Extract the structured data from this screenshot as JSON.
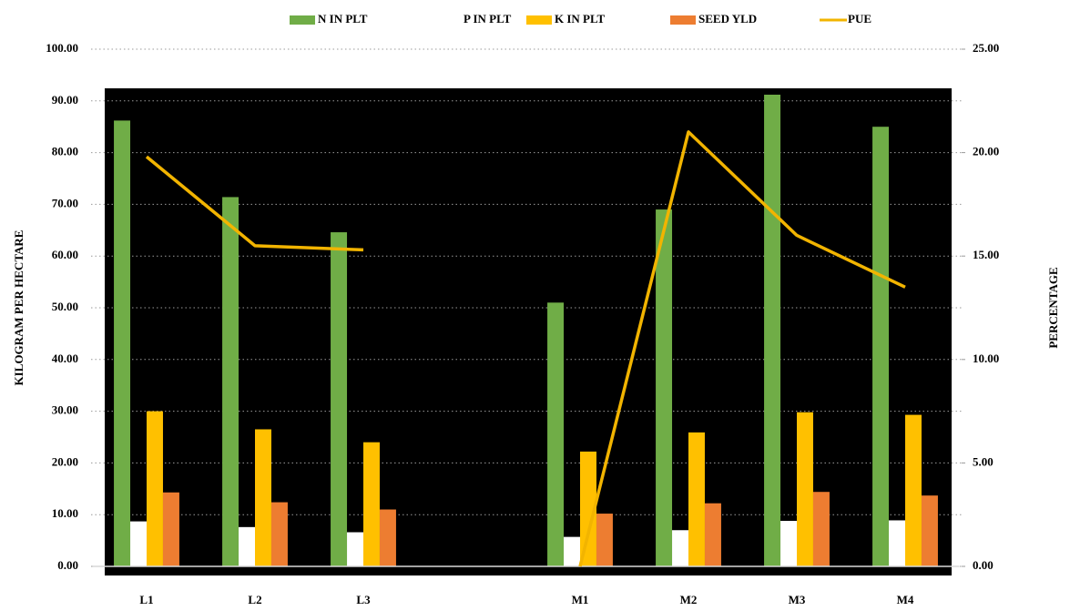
{
  "chart_data": {
    "type": "bar",
    "categories": [
      "L1",
      "L2",
      "L3",
      null,
      "M1",
      "M2",
      "M3",
      "M4"
    ],
    "series": [
      {
        "name": "N IN PLT",
        "color": "#70ad47",
        "values": [
          86.2,
          71.4,
          64.6,
          null,
          51.0,
          69.0,
          91.2,
          85.0
        ]
      },
      {
        "name": "P IN PLT",
        "color": "#ffffff",
        "values": [
          8.7,
          7.6,
          6.6,
          null,
          5.7,
          7.0,
          8.8,
          8.9
        ]
      },
      {
        "name": "K IN PLT",
        "color": "#ffc000",
        "values": [
          30.0,
          26.5,
          24.0,
          null,
          22.2,
          25.9,
          29.8,
          29.3
        ]
      },
      {
        "name": "SEED YLD",
        "color": "#ed7d31",
        "values": [
          14.3,
          12.4,
          11.0,
          null,
          10.2,
          12.2,
          14.4,
          13.7
        ]
      },
      {
        "name": "PUE",
        "color": "#f2b400",
        "type": "line",
        "axis": "y2",
        "values": [
          19.8,
          15.5,
          15.3,
          null,
          0.0,
          21.0,
          16.0,
          13.5
        ]
      }
    ],
    "ylabel": "KILOGRAM PER HECTARE",
    "y2label": "PERCENTAGE",
    "ylim": [
      0,
      100
    ],
    "yticks": [
      {
        "value": 0,
        "label": "0.00"
      },
      {
        "value": 10,
        "label": "10.00"
      },
      {
        "value": 20,
        "label": "20.00"
      },
      {
        "value": 30,
        "label": "30.00"
      },
      {
        "value": 40,
        "label": "40.00"
      },
      {
        "value": 50,
        "label": "50.00"
      },
      {
        "value": 60,
        "label": "60.00"
      },
      {
        "value": 70,
        "label": "70.00"
      },
      {
        "value": 80,
        "label": "80.00"
      },
      {
        "value": 90,
        "label": "90.00"
      },
      {
        "value": 100,
        "label": "100.00"
      }
    ],
    "y2lim": [
      0,
      25
    ],
    "y2ticks": [
      {
        "value": 0,
        "label": "0.00"
      },
      {
        "value": 5,
        "label": "5.00"
      },
      {
        "value": 10,
        "label": "10.00"
      },
      {
        "value": 15,
        "label": "15.00"
      },
      {
        "value": 20,
        "label": "20.00"
      },
      {
        "value": 25,
        "label": "25.00"
      }
    ],
    "grid": true,
    "legend": "top"
  }
}
